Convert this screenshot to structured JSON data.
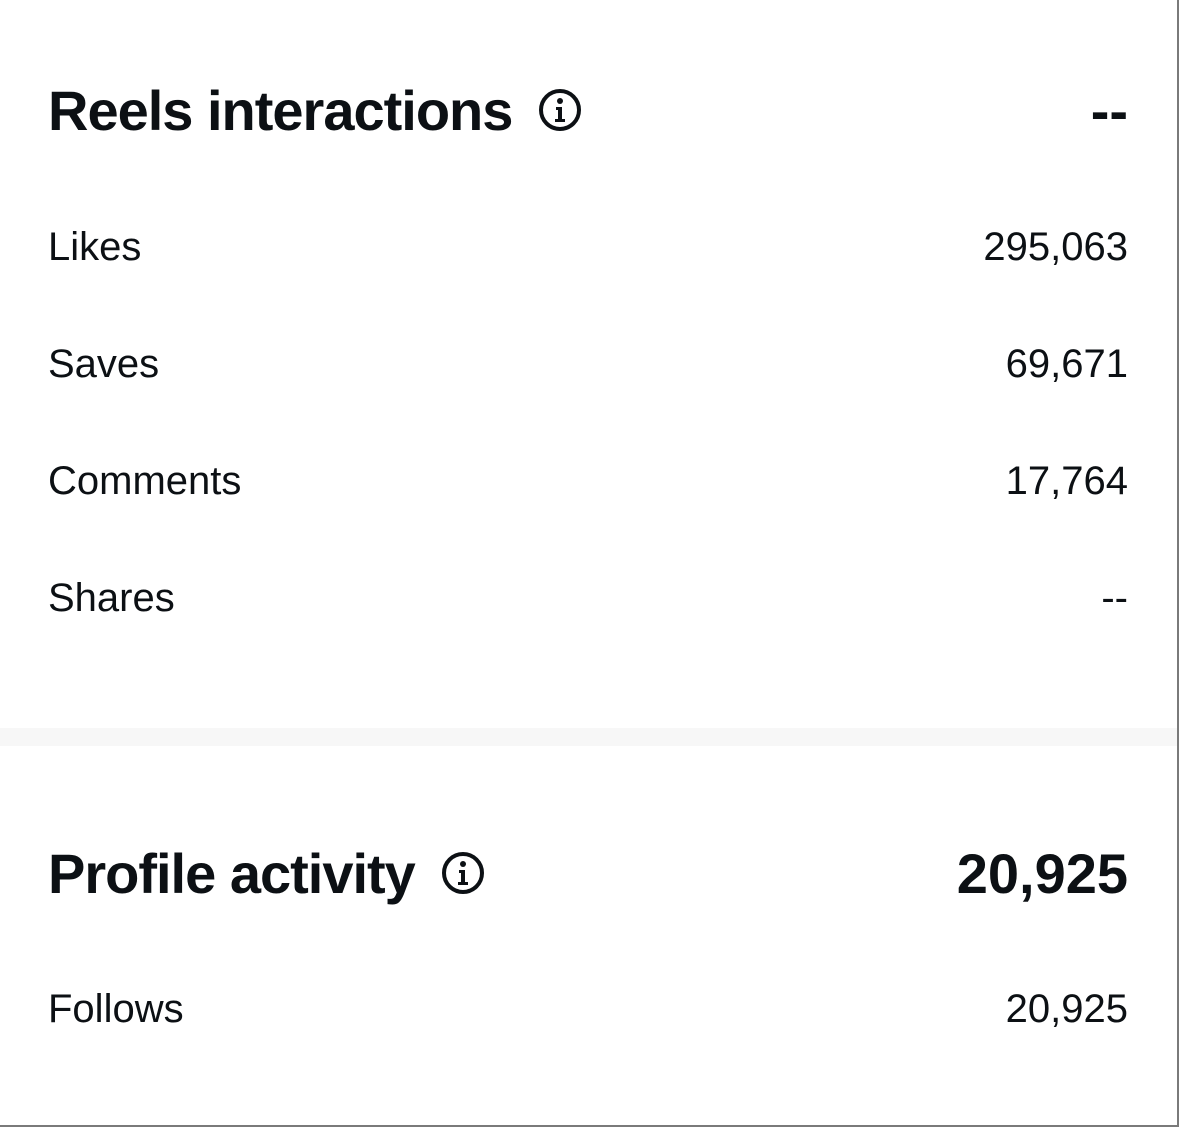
{
  "reels": {
    "title": "Reels interactions",
    "total": "--",
    "rows": [
      {
        "label": "Likes",
        "value": "295,063"
      },
      {
        "label": "Saves",
        "value": "69,671"
      },
      {
        "label": "Comments",
        "value": "17,764"
      },
      {
        "label": "Shares",
        "value": "--"
      }
    ]
  },
  "profile": {
    "title": "Profile activity",
    "total": "20,925",
    "rows": [
      {
        "label": "Follows",
        "value": "20,925"
      }
    ]
  }
}
